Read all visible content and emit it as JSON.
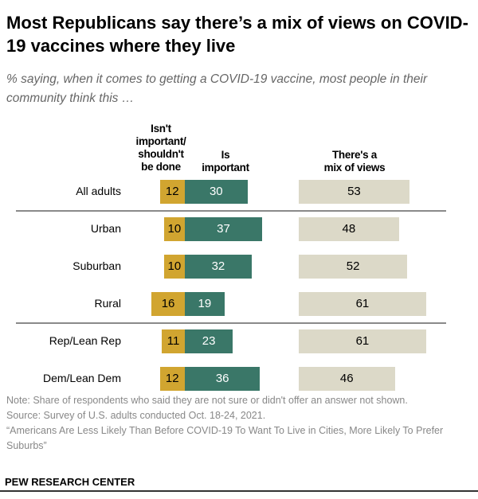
{
  "chart_data": {
    "type": "bar",
    "title": "Most Republicans say there’s a mix of views on COVID-19 vaccines where they live",
    "subtitle": "% saying, when it comes to getting a COVID-19 vaccine, most people in their community think this …",
    "categories": [
      "All adults",
      "Urban",
      "Suburban",
      "Rural",
      "Rep/Lean Rep",
      "Dem/Lean Dem"
    ],
    "series": [
      {
        "name": "Isn't important/ shouldn't be done",
        "color": "#d1a530",
        "values": [
          12,
          10,
          10,
          16,
          11,
          12
        ]
      },
      {
        "name": "Is important",
        "color": "#3a7768",
        "values": [
          30,
          37,
          32,
          19,
          23,
          36
        ]
      },
      {
        "name": "There's a mix of views",
        "color": "#dcd9c8",
        "values": [
          53,
          48,
          52,
          61,
          61,
          46
        ]
      }
    ],
    "header_lines": [
      [
        "Isn't",
        "important/",
        "shouldn't",
        "be done"
      ],
      [
        "Is",
        "important"
      ],
      [
        "There's a",
        "mix of views"
      ]
    ],
    "groups_separated_after": [
      "All adults",
      "Rural"
    ]
  },
  "notes": {
    "note": "Note: Share of respondents who said they are not sure or didn't offer an answer not shown.",
    "source": "Source: Survey of U.S. adults conducted Oct. 18-24, 2021.",
    "report": "“Americans Are Less Likely Than Before COVID-19 To Want To Live in Cities, More Likely To Prefer Suburbs”"
  },
  "brand": "PEW RESEARCH CENTER"
}
